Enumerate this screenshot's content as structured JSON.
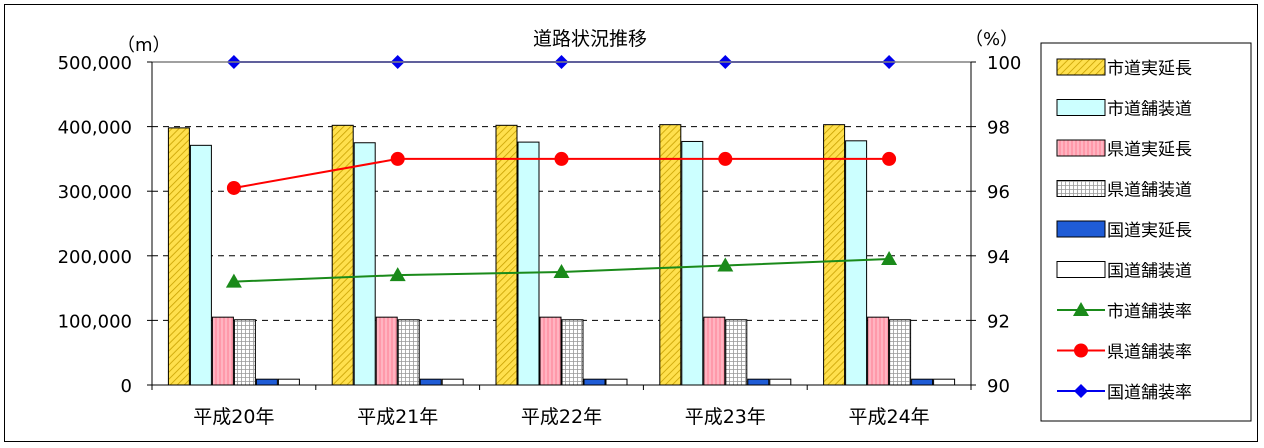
{
  "chart_data": {
    "type": "bar",
    "title": "道路状況推移",
    "y_left_unit": "（m）",
    "y_right_unit": "（%）",
    "categories": [
      "平成20年",
      "平成21年",
      "平成22年",
      "平成23年",
      "平成24年"
    ],
    "ylim_left": [
      0,
      500000
    ],
    "yticks_left": [
      "0",
      "100,000",
      "200,000",
      "300,000",
      "400,000",
      "500,000"
    ],
    "ylim_right": [
      90,
      100
    ],
    "yticks_right": [
      "90",
      "92",
      "94",
      "96",
      "98",
      "100"
    ],
    "grid": true,
    "legend_position": "right",
    "bar_series": [
      {
        "name": "市道実延長",
        "values": [
          398000,
          402000,
          402000,
          403000,
          403000
        ],
        "color": "#ffe04d",
        "pattern": "diagonal"
      },
      {
        "name": "市道舗装道",
        "values": [
          371000,
          375000,
          376000,
          377000,
          378000
        ],
        "color": "#ccffff",
        "pattern": "solid"
      },
      {
        "name": "県道実延長",
        "values": [
          105000,
          105000,
          105000,
          105000,
          105000
        ],
        "color": "#ff99aa",
        "pattern": "vertical"
      },
      {
        "name": "県道舗装道",
        "values": [
          101000,
          101000,
          101000,
          101000,
          101000
        ],
        "color": "#ffffff",
        "pattern": "grid"
      },
      {
        "name": "国道実延長",
        "values": [
          9000,
          9000,
          9000,
          9000,
          9000
        ],
        "color": "#1f5cd6",
        "pattern": "solid"
      },
      {
        "name": "国道舗装道",
        "values": [
          9000,
          9000,
          9000,
          9000,
          9000
        ],
        "color": "#ffffff",
        "pattern": "solid"
      }
    ],
    "line_series": [
      {
        "name": "市道舗装率",
        "values": [
          93.2,
          93.4,
          93.5,
          93.7,
          93.9
        ],
        "color": "#1a8a1a",
        "marker": "triangle"
      },
      {
        "name": "県道舗装率",
        "values": [
          96.1,
          97.0,
          97.0,
          97.0,
          97.0
        ],
        "color": "#ff0000",
        "marker": "circle"
      },
      {
        "name": "国道舗装率",
        "values": [
          100,
          100,
          100,
          100,
          100
        ],
        "color": "#0000ee",
        "marker": "diamond"
      }
    ]
  }
}
